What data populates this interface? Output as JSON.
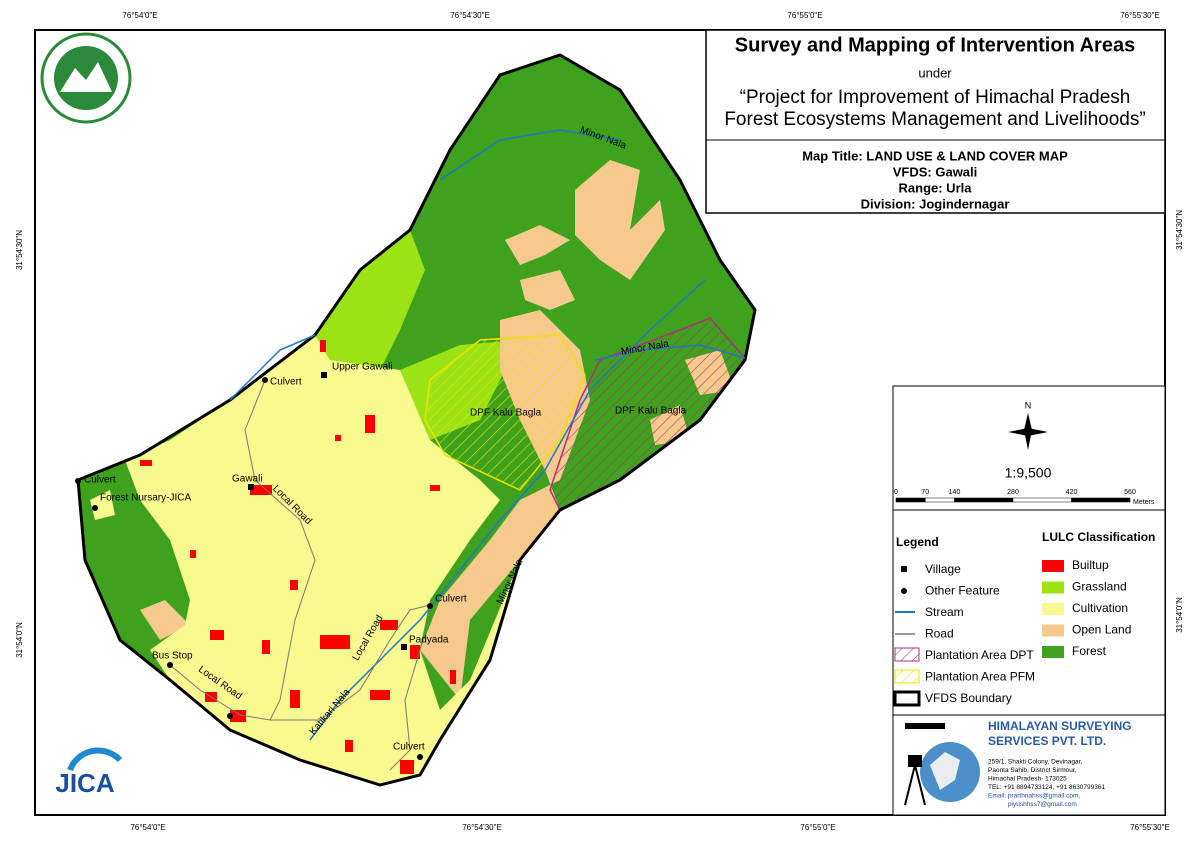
{
  "coordinates": {
    "top": [
      "76°54'0\"E",
      "76°54'30\"E",
      "76°55'0\"E",
      "76°55'30\"E"
    ],
    "bottom": [
      "76°54'0\"E",
      "76°54'30\"E",
      "76°55'0\"E",
      "76°55'30\"E"
    ],
    "left": [
      "31°54'30\"N",
      "31°54'0\"N"
    ],
    "right": [
      "31°54'30\"N",
      "31°54'0\"N"
    ]
  },
  "header": {
    "title": "Survey and Mapping of Intervention Areas",
    "under": "under",
    "project": [
      "“Project for Improvement of Himachal Pradesh",
      "Forest Ecosystems Management and Livelihoods”"
    ]
  },
  "map_info": {
    "map_title": "Map Title: LAND USE & LAND COVER MAP",
    "vfds": "VFDS: Gawali",
    "range": "Range: Urla",
    "division": "Division: Jogindernagar"
  },
  "map_labels": [
    "Minor Nala",
    "Minor Nala",
    "Minor Nala",
    "Upper Gawali",
    "Culvert",
    "Culvert",
    "Culvert",
    "Culvert",
    "DPF Kalu Bagla",
    "DPF Kalu Bagla",
    "Gawali",
    "Local Road",
    "Local Road",
    "Local Road",
    "Forest Nursary-JICA",
    "Bus Stop",
    "Katikari Nala",
    "Padyada"
  ],
  "north": "N",
  "scale": "1:9,500",
  "scale_bar": {
    "ticks": [
      0,
      70,
      140,
      280,
      420,
      560
    ],
    "unit": "Meters"
  },
  "legend": {
    "title": "Legend",
    "items": [
      "Village",
      "Other Feature",
      "Stream",
      "Road",
      "Plantation Area DPT",
      "Plantation Area PFM",
      "VFDS Boundary"
    ]
  },
  "lulc": {
    "title": "LULC Classification",
    "items": [
      {
        "name": "Builtup",
        "color": "#ff0000"
      },
      {
        "name": "Grassland",
        "color": "#9be315"
      },
      {
        "name": "Cultivation",
        "color": "#f8f98e"
      },
      {
        "name": "Open Land",
        "color": "#f6c98c"
      },
      {
        "name": "Forest",
        "color": "#3ea21c"
      }
    ]
  },
  "company": {
    "name": [
      "HIMALAYAN SURVEYING",
      "SERVICES PVT. LTD."
    ],
    "address": [
      "259/1, Shakti Colony, Devinagar,",
      "Paonta Sahib, District Sirmour,",
      "Himachal Pradesh- 173025",
      "TEL: +91 8894733124, +91 8630799361",
      "Email: prarthnahss@gmail.com,",
      "piyushhss7@gmail.com"
    ]
  },
  "jica": "JICA"
}
